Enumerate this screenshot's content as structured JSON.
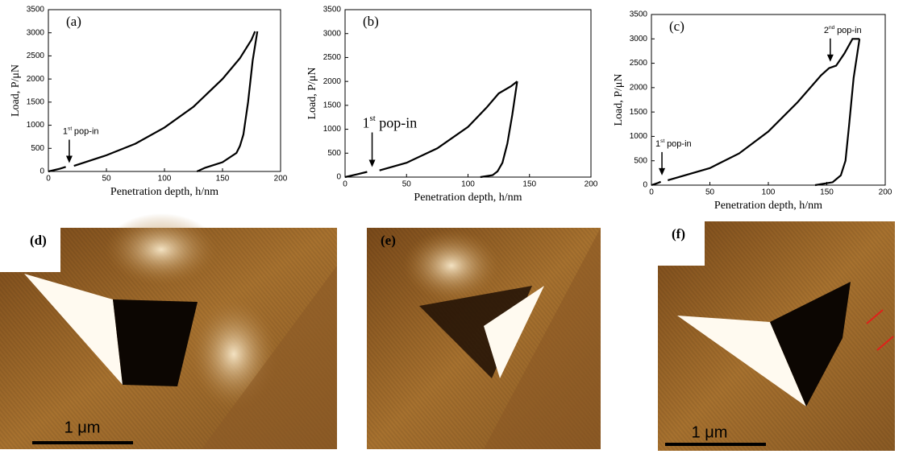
{
  "chart_data": [
    {
      "type": "line",
      "panel": "(a)",
      "xlabel": "Penetration depth, h/nm",
      "ylabel": "Load, P/μN",
      "xlim": [
        0,
        200
      ],
      "ylim": [
        0,
        3500
      ],
      "xticks": [
        0,
        50,
        100,
        150,
        200
      ],
      "yticks": [
        0,
        500,
        1000,
        1500,
        2000,
        2500,
        3000,
        3500
      ],
      "series": [
        {
          "color": "#000000",
          "x": [
            0,
            10,
            15,
            18,
            22,
            50,
            75,
            100,
            125,
            150,
            165,
            175,
            178
          ],
          "values": [
            0,
            60,
            100,
            null,
            120,
            350,
            600,
            950,
            1400,
            2000,
            2450,
            2850,
            3030
          ]
        },
        {
          "color": "#000000",
          "x": [
            180,
            176,
            172,
            168,
            165,
            162,
            150,
            135,
            128
          ],
          "values": [
            3030,
            2400,
            1500,
            800,
            550,
            400,
            200,
            80,
            0
          ]
        }
      ],
      "annotations": [
        {
          "num": "1",
          "sup": "st",
          "text": "pop-in",
          "at": [
            18,
            130
          ]
        }
      ]
    },
    {
      "type": "line",
      "panel": "(b)",
      "xlabel": "Penetration depth, h/nm",
      "ylabel": "Load, P/μN",
      "xlim": [
        0,
        200
      ],
      "ylim": [
        0,
        3500
      ],
      "xticks": [
        0,
        50,
        100,
        150,
        200
      ],
      "yticks": [
        0,
        500,
        1000,
        1500,
        2000,
        2500,
        3000,
        3500
      ],
      "series": [
        {
          "color": "#000000",
          "x": [
            0,
            10,
            18,
            23,
            28,
            50,
            75,
            100,
            115,
            125,
            135,
            140
          ],
          "values": [
            0,
            60,
            110,
            null,
            140,
            300,
            600,
            1050,
            1450,
            1750,
            1900,
            2000
          ]
        },
        {
          "color": "#000000",
          "x": [
            140,
            136,
            132,
            128,
            124,
            120,
            110
          ],
          "values": [
            2000,
            1300,
            700,
            300,
            120,
            40,
            0
          ]
        }
      ],
      "annotations": [
        {
          "num": "1",
          "sup": "st",
          "text": "pop-in",
          "at": [
            22,
            160
          ]
        }
      ]
    },
    {
      "type": "line",
      "panel": "(c)",
      "xlabel": "Penetration depth, h/nm",
      "ylabel": "Load, P/μN",
      "xlim": [
        0,
        200
      ],
      "ylim": [
        0,
        3500
      ],
      "xticks": [
        0,
        50,
        100,
        150,
        200
      ],
      "yticks": [
        0,
        500,
        1000,
        1500,
        2000,
        2500,
        3000,
        3500
      ],
      "series": [
        {
          "color": "#000000",
          "x": [
            0,
            5,
            8,
            11,
            14,
            50,
            75,
            100,
            125,
            145,
            152,
            158,
            165,
            172,
            178
          ],
          "values": [
            0,
            40,
            70,
            null,
            100,
            350,
            650,
            1100,
            1700,
            2250,
            2400,
            2450,
            2700,
            3000,
            3000
          ]
        },
        {
          "color": "#000000",
          "x": [
            178,
            173,
            169,
            166,
            162,
            155,
            140
          ],
          "values": [
            3000,
            2200,
            1200,
            500,
            200,
            60,
            0
          ]
        }
      ],
      "annotations": [
        {
          "num": "1",
          "sup": "st",
          "text": "pop-in",
          "at": [
            9,
            150
          ]
        },
        {
          "num": "2",
          "sup": "nd",
          "text": "pop-in",
          "at": [
            153,
            2480
          ]
        }
      ]
    }
  ],
  "images": [
    {
      "label": "(d)",
      "scale_bar": "1 μm"
    },
    {
      "label": "(e)"
    },
    {
      "label": "(f)",
      "scale_bar": "1 μm"
    }
  ]
}
